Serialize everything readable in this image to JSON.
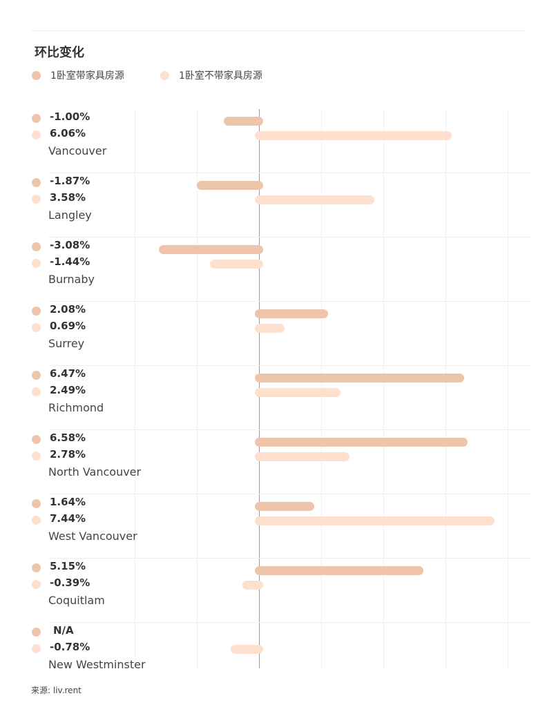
{
  "title": "环比变化",
  "source": "来源: liv.rent",
  "colors": {
    "furnished": "#eec4ab",
    "unfurnished": "#fde0ce"
  },
  "chart_data": {
    "type": "bar",
    "orientation": "horizontal",
    "title": "环比变化",
    "unit": "%",
    "xlim": [
      -4,
      8.5
    ],
    "grid_step": 2,
    "legend_position": "top-left",
    "categories": [
      "Vancouver",
      "Langley",
      "Burnaby",
      "Surrey",
      "Richmond",
      "North Vancouver",
      "West Vancouver",
      "Coquitlam",
      "New Westminster"
    ],
    "series": [
      {
        "name": "1卧室带家具房源",
        "values": [
          -1.0,
          -1.87,
          -3.08,
          2.08,
          6.47,
          6.58,
          1.64,
          5.15,
          null
        ],
        "labels": [
          "-1.00%",
          "-1.87%",
          "-3.08%",
          "2.08%",
          "6.47%",
          "6.58%",
          "1.64%",
          "5.15%",
          "N/A"
        ]
      },
      {
        "name": "1卧室不带家具房源",
        "values": [
          6.06,
          3.58,
          -1.44,
          0.69,
          2.49,
          2.78,
          7.44,
          -0.39,
          -0.78
        ],
        "labels": [
          "6.06%",
          "3.58%",
          "-1.44%",
          "0.69%",
          "2.49%",
          "2.78%",
          "7.44%",
          "-0.39%",
          "-0.78%"
        ]
      }
    ]
  }
}
